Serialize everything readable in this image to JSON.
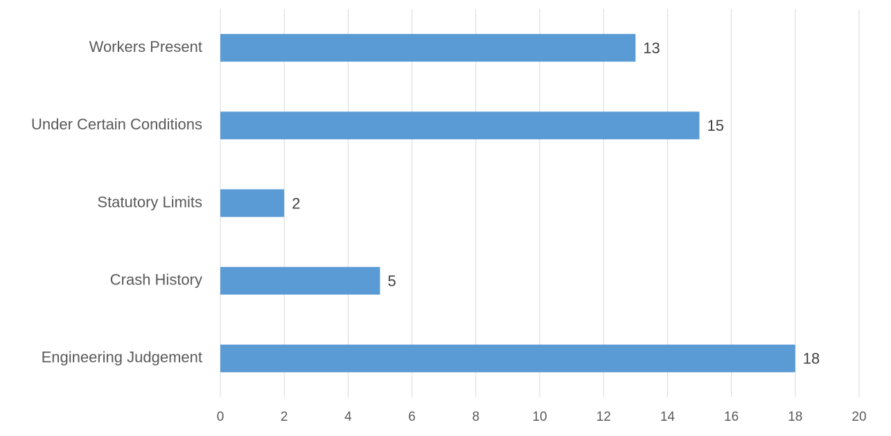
{
  "chart_data": {
    "type": "hbar",
    "categories": [
      "Workers Present",
      "Under Certain Conditions",
      "Statutory Limits",
      "Crash History",
      "Engineering Judgement"
    ],
    "values": [
      13,
      15,
      2,
      5,
      18
    ],
    "color": "#5b9bd5",
    "xlim": [
      0,
      20
    ],
    "xticks": [
      0,
      2,
      4,
      6,
      8,
      10,
      12,
      14,
      16,
      18,
      20
    ],
    "grid": true
  }
}
